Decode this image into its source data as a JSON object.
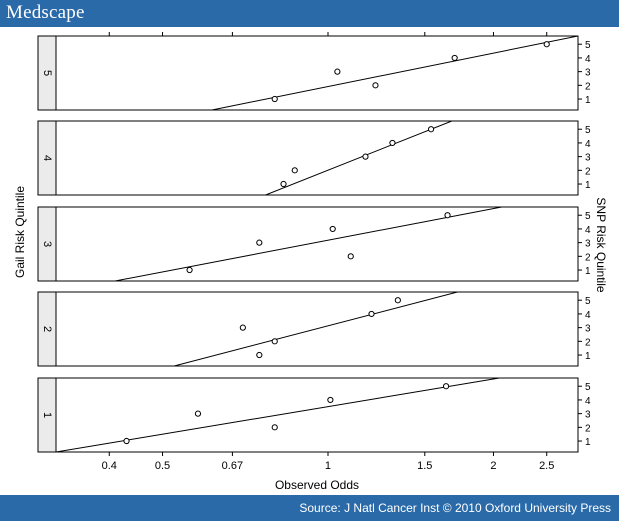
{
  "header": {
    "brand": "Medscape"
  },
  "footer": {
    "source": "Source: J Natl Cancer Inst © 2010 Oxford University Press"
  },
  "colors": {
    "bar": "#2a6aa8",
    "strip": "#ebebeb",
    "ink": "#000000"
  },
  "chart_data": {
    "type": "scatter",
    "xlabel": "Observed Odds",
    "ylabel_left": "Gail Risk Quintile",
    "ylabel_right": "SNP Risk Quintile",
    "x_scale": "log",
    "xlim": [
      0.32,
      2.85
    ],
    "xticks": [
      {
        "value": 0.4,
        "label": "0.4"
      },
      {
        "value": 0.5,
        "label": "0.5"
      },
      {
        "value": 0.67,
        "label": "0.67"
      },
      {
        "value": 1.0,
        "label": "1"
      },
      {
        "value": 1.5,
        "label": "1.5"
      },
      {
        "value": 2.0,
        "label": "2"
      },
      {
        "value": 2.5,
        "label": "2.5"
      }
    ],
    "yticks": [
      1,
      2,
      3,
      4,
      5
    ],
    "ylim": [
      0.2,
      5.6
    ],
    "panels": [
      {
        "label": "5",
        "points": [
          {
            "x": 0.8,
            "y": 1
          },
          {
            "x": 1.22,
            "y": 2
          },
          {
            "x": 1.04,
            "y": 3
          },
          {
            "x": 1.7,
            "y": 4
          },
          {
            "x": 2.5,
            "y": 5
          }
        ],
        "fit": [
          {
            "x": 0.615,
            "y": 0.2
          },
          {
            "x": 2.85,
            "y": 5.6
          }
        ]
      },
      {
        "label": "4",
        "points": [
          {
            "x": 0.83,
            "y": 1
          },
          {
            "x": 0.87,
            "y": 2
          },
          {
            "x": 1.17,
            "y": 3
          },
          {
            "x": 1.31,
            "y": 4
          },
          {
            "x": 1.54,
            "y": 5
          }
        ],
        "fit": [
          {
            "x": 0.77,
            "y": 0.2
          },
          {
            "x": 1.68,
            "y": 5.6
          }
        ]
      },
      {
        "label": "3",
        "points": [
          {
            "x": 0.56,
            "y": 1
          },
          {
            "x": 1.1,
            "y": 2
          },
          {
            "x": 0.75,
            "y": 3
          },
          {
            "x": 1.02,
            "y": 4
          },
          {
            "x": 1.65,
            "y": 5
          }
        ],
        "fit": [
          {
            "x": 0.41,
            "y": 0.2
          },
          {
            "x": 2.07,
            "y": 5.6
          }
        ]
      },
      {
        "label": "2",
        "points": [
          {
            "x": 0.75,
            "y": 1
          },
          {
            "x": 0.8,
            "y": 2
          },
          {
            "x": 0.7,
            "y": 3
          },
          {
            "x": 1.2,
            "y": 4
          },
          {
            "x": 1.34,
            "y": 5
          }
        ],
        "fit": [
          {
            "x": 0.525,
            "y": 0.2
          },
          {
            "x": 1.72,
            "y": 5.6
          }
        ]
      },
      {
        "label": "1",
        "points": [
          {
            "x": 0.43,
            "y": 1
          },
          {
            "x": 0.8,
            "y": 2
          },
          {
            "x": 0.58,
            "y": 3
          },
          {
            "x": 1.01,
            "y": 4
          },
          {
            "x": 1.64,
            "y": 5
          }
        ],
        "fit": [
          {
            "x": 0.32,
            "y": 0.2
          },
          {
            "x": 2.05,
            "y": 5.6
          }
        ]
      }
    ]
  }
}
